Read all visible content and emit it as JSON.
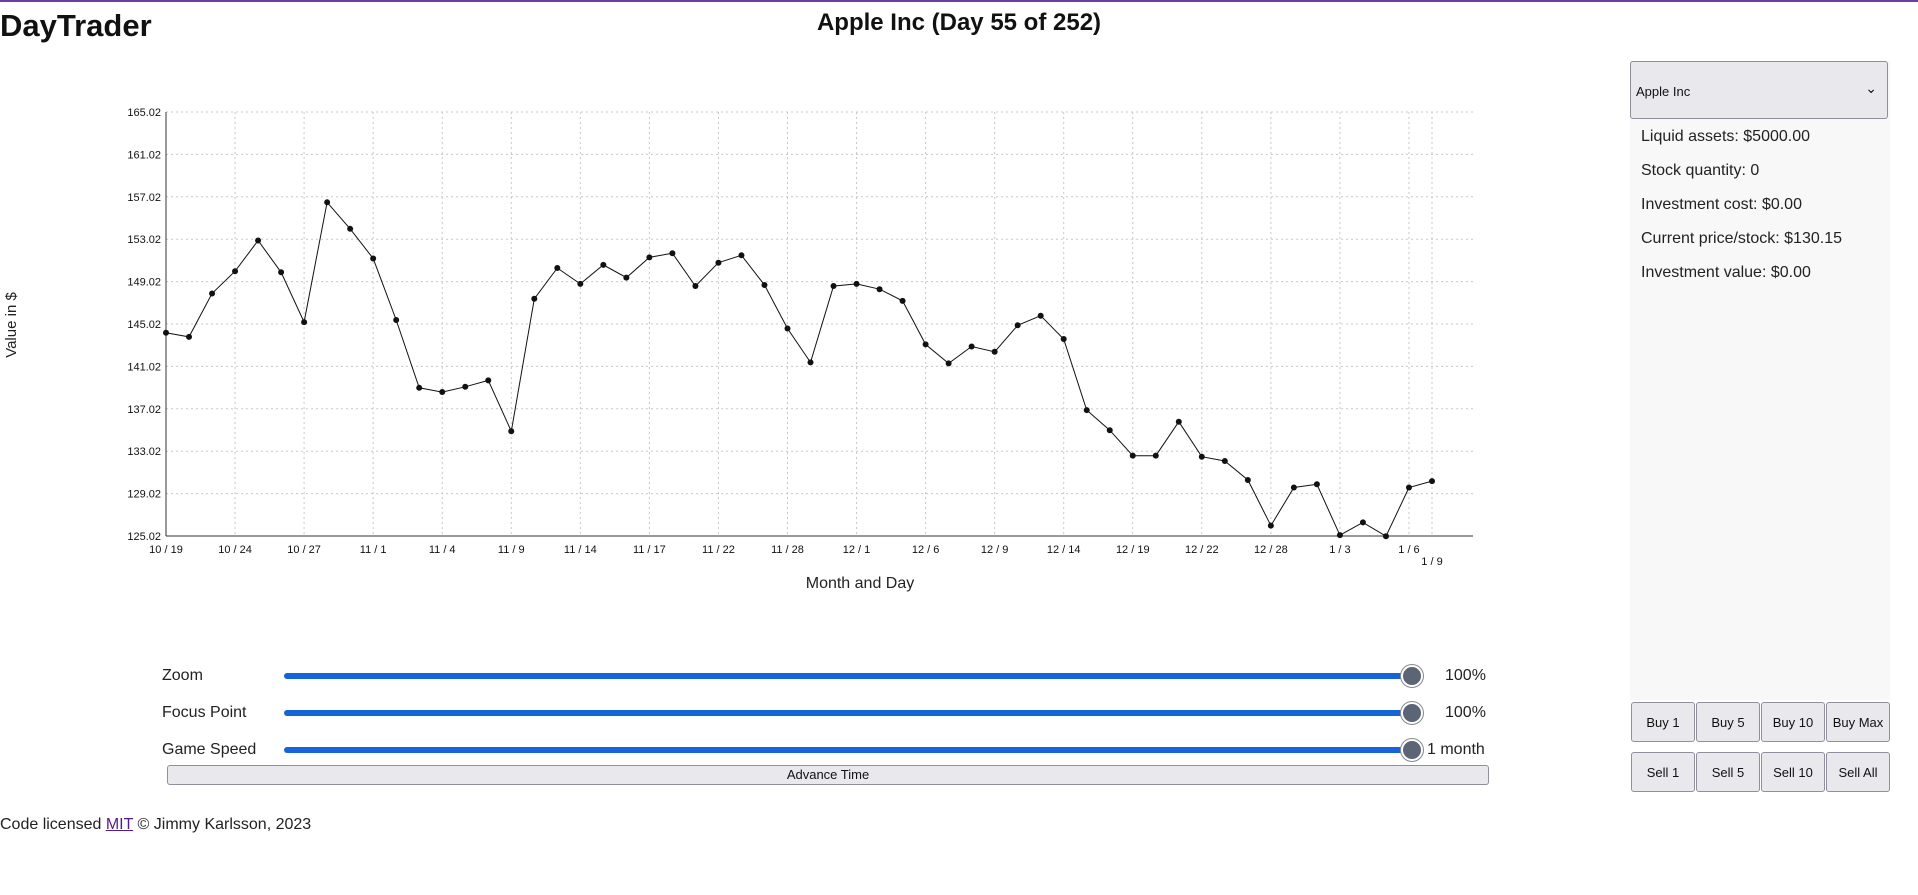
{
  "app": {
    "title": "DayTrader"
  },
  "chart_data": {
    "type": "line",
    "title": "Apple Inc (Day 55 of 252)",
    "xlabel": "Month and Day",
    "ylabel": "Value in $",
    "ylim": [
      125.02,
      165.02
    ],
    "yticks": [
      "165.02",
      "161.02",
      "157.02",
      "153.02",
      "149.02",
      "145.02",
      "141.02",
      "137.02",
      "133.02",
      "129.02",
      "125.02"
    ],
    "xticks": [
      {
        "index": 0,
        "label": "10 / 19"
      },
      {
        "index": 3,
        "label": "10 / 24"
      },
      {
        "index": 6,
        "label": "10 / 27"
      },
      {
        "index": 9,
        "label": "11 / 1"
      },
      {
        "index": 12,
        "label": "11 / 4"
      },
      {
        "index": 15,
        "label": "11 / 9"
      },
      {
        "index": 18,
        "label": "11 / 14"
      },
      {
        "index": 21,
        "label": "11 / 17"
      },
      {
        "index": 24,
        "label": "11 / 22"
      },
      {
        "index": 27,
        "label": "11 / 28"
      },
      {
        "index": 30,
        "label": "12 / 1"
      },
      {
        "index": 33,
        "label": "12 / 6"
      },
      {
        "index": 36,
        "label": "12 / 9"
      },
      {
        "index": 39,
        "label": "12 / 14"
      },
      {
        "index": 42,
        "label": "12 / 19"
      },
      {
        "index": 45,
        "label": "12 / 22"
      },
      {
        "index": 48,
        "label": "12 / 28"
      },
      {
        "index": 51,
        "label": "1 / 3"
      },
      {
        "index": 54,
        "label": "1 / 6"
      },
      {
        "index": 55,
        "label": "1 / 9"
      }
    ],
    "grid": true,
    "series": [
      {
        "values": [
          144.2,
          143.8,
          147.9,
          150.0,
          152.9,
          149.9,
          145.2,
          156.5,
          154.0,
          151.2,
          145.4,
          139.0,
          138.6,
          139.1,
          139.7,
          134.9,
          147.4,
          150.3,
          148.8,
          150.6,
          149.4,
          151.3,
          151.7,
          148.6,
          150.8,
          151.5,
          148.7,
          144.6,
          141.4,
          148.6,
          148.8,
          148.3,
          147.2,
          143.1,
          141.3,
          142.9,
          142.4,
          144.9,
          145.8,
          143.6,
          136.9,
          135.0,
          132.6,
          132.6,
          135.8,
          132.5,
          132.1,
          130.3,
          126.0,
          129.6,
          129.9,
          125.1,
          126.3,
          125.0,
          129.6,
          130.2
        ]
      }
    ]
  },
  "controls": {
    "zoom": {
      "label": "Zoom",
      "value": "100%",
      "level": 1.0
    },
    "focus": {
      "label": "Focus Point",
      "value": "100%",
      "level": 1.0
    },
    "speed": {
      "label": "Game Speed",
      "value": "1 month",
      "level": 1.0
    },
    "advance_label": "Advance Time"
  },
  "sidebar": {
    "stock_select": "Apple Inc",
    "stats": {
      "liquid": "Liquid assets: $5000.00",
      "quantity": "Stock quantity: 0",
      "cost": "Investment cost: $0.00",
      "price": "Current price/stock: $130.15",
      "value": "Investment value: $0.00"
    },
    "buy_buttons": [
      "Buy 1",
      "Buy 5",
      "Buy 10",
      "Buy Max"
    ],
    "sell_buttons": [
      "Sell 1",
      "Sell 5",
      "Sell 10",
      "Sell All"
    ]
  },
  "footer": {
    "prefix": "Code licensed ",
    "link": "MIT",
    "suffix": " © Jimmy Karlsson, 2023"
  }
}
